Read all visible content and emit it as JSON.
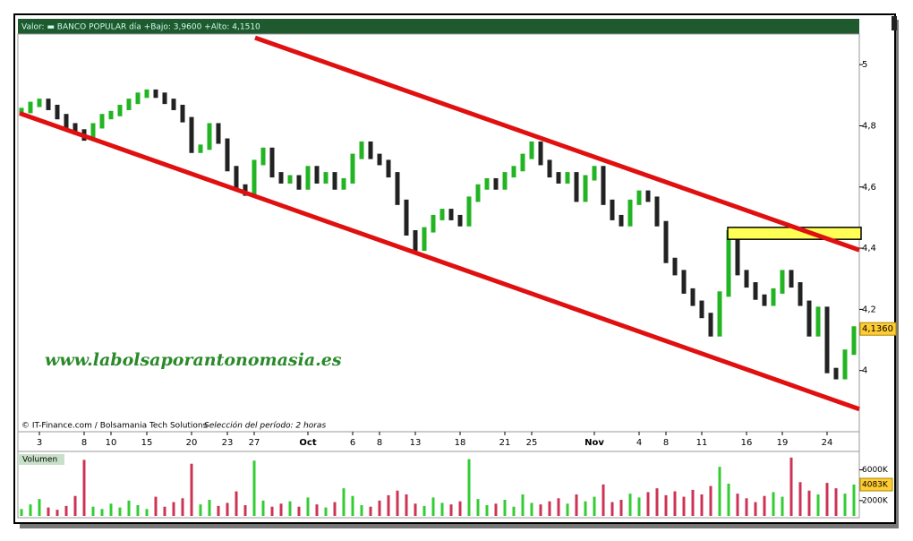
{
  "chart_data": {
    "type": "candle",
    "header": "Valor:  ▬ BANCO POPULAR     día +Bajo: 3,9600  +Alto: 4,1510",
    "credit": "© IT-Finance.com / Bolsamania Tech Solutions",
    "period": "Selección del período: 2 horas",
    "watermark": "www.labolsaporantonomasia.es",
    "last_label": "4,1360",
    "up_color": "#22b422",
    "down_color": "#222222",
    "values": [
      4.85,
      4.87,
      4.88,
      4.86,
      4.83,
      4.8,
      4.78,
      4.76,
      4.8,
      4.83,
      4.84,
      4.86,
      4.88,
      4.9,
      4.91,
      4.9,
      4.88,
      4.86,
      4.82,
      4.72,
      4.73,
      4.8,
      4.75,
      4.66,
      4.6,
      4.58,
      4.68,
      4.72,
      4.64,
      4.62,
      4.63,
      4.6,
      4.66,
      4.62,
      4.64,
      4.6,
      4.62,
      4.7,
      4.74,
      4.7,
      4.68,
      4.64,
      4.55,
      4.45,
      4.4,
      4.46,
      4.5,
      4.52,
      4.5,
      4.48,
      4.56,
      4.6,
      4.62,
      4.6,
      4.64,
      4.66,
      4.7,
      4.74,
      4.68,
      4.64,
      4.62,
      4.64,
      4.56,
      4.63,
      4.66,
      4.55,
      4.5,
      4.48,
      4.55,
      4.58,
      4.56,
      4.48,
      4.36,
      4.32,
      4.26,
      4.22,
      4.18,
      4.12,
      4.25,
      4.45,
      4.32,
      4.28,
      4.24,
      4.22,
      4.26,
      4.32,
      4.28,
      4.22,
      4.12,
      4.2,
      4.0,
      3.98,
      4.06,
      4.136
    ],
    "xlim": [
      -0.2,
      93.6
    ],
    "ylim": [
      3.8,
      5.1
    ],
    "yticks": [
      {
        "value": 4,
        "label": "4"
      },
      {
        "value": 4.2,
        "label": "4,2"
      },
      {
        "value": 4.4,
        "label": "4,4"
      },
      {
        "value": 4.6,
        "label": "4,6"
      },
      {
        "value": 4.8,
        "label": "4,8"
      },
      {
        "value": 5,
        "label": "5"
      }
    ],
    "xticks": [
      {
        "value": 2,
        "label": "3"
      },
      {
        "value": 7,
        "label": "8"
      },
      {
        "value": 10,
        "label": "10"
      },
      {
        "value": 14,
        "label": "15"
      },
      {
        "value": 19,
        "label": "20"
      },
      {
        "value": 23,
        "label": "23"
      },
      {
        "value": 26,
        "label": "27"
      },
      {
        "value": 32,
        "label": "Oct"
      },
      {
        "value": 37,
        "label": "6"
      },
      {
        "value": 40,
        "label": "8"
      },
      {
        "value": 44,
        "label": "13"
      },
      {
        "value": 49,
        "label": "18"
      },
      {
        "value": 54,
        "label": "21"
      },
      {
        "value": 57,
        "label": "25"
      },
      {
        "value": 64,
        "label": "Nov"
      },
      {
        "value": 69,
        "label": "4"
      },
      {
        "value": 72,
        "label": "8"
      },
      {
        "value": 76,
        "label": "11"
      },
      {
        "value": 81,
        "label": "16"
      },
      {
        "value": 85,
        "label": "19"
      },
      {
        "value": 90,
        "label": "24"
      }
    ],
    "trendlines": [
      {
        "color": "#e01010",
        "x": [
          26.1,
          93.6
        ],
        "y": [
          5.088,
          4.394
        ]
      },
      {
        "color": "#e01010",
        "x": [
          -0.2,
          93.6
        ],
        "y": [
          4.841,
          3.874
        ]
      }
    ],
    "zone": {
      "color": "#ffff55",
      "x": [
        78.9,
        93.8
      ],
      "y": [
        4.429,
        4.468
      ]
    },
    "volume": {
      "title": "Volumen",
      "last_label": "4083K",
      "ylim": [
        0,
        8400
      ],
      "yticks": [
        {
          "value": 2000,
          "label": "2000K"
        },
        {
          "value": 6000,
          "label": "6000K"
        }
      ],
      "values": [
        900,
        1500,
        2200,
        1100,
        800,
        1300,
        2600,
        7300,
        1200,
        900,
        1600,
        1100,
        2000,
        1400,
        900,
        2500,
        1200,
        1800,
        2300,
        6800,
        1500,
        2100,
        1300,
        1700,
        3200,
        1400,
        7200,
        2000,
        1200,
        1600,
        1900,
        1200,
        2400,
        1500,
        1100,
        1800,
        3600,
        2600,
        1400,
        1200,
        2000,
        2700,
        3300,
        2800,
        1600,
        1300,
        2400,
        1700,
        1500,
        1900,
        7400,
        2200,
        1400,
        1600,
        2100,
        1200,
        2800,
        1700,
        1500,
        1900,
        2300,
        1600,
        2800,
        1900,
        2500,
        4100,
        1800,
        2100,
        2900,
        2400,
        3100,
        3600,
        2700,
        3200,
        2500,
        3400,
        2800,
        3900,
        6400,
        4200,
        2900,
        2300,
        1800,
        2600,
        3100,
        2500,
        7600,
        4400,
        3300,
        2800,
        4300,
        3600,
        2900,
        4083
      ]
    }
  }
}
